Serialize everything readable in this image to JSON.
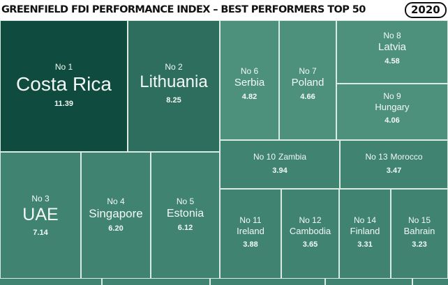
{
  "header": {
    "title": "GREENFIELD FDI PERFORMANCE INDEX – BEST PERFORMERS TOP 50",
    "year": "2020"
  },
  "colors": {
    "darkest": "#0f4b3e",
    "dark": "#2d6e5e",
    "medium": "#3f8370",
    "light": "#4d917d",
    "border": "#d9ebe3"
  },
  "chart_data": {
    "type": "treemap",
    "title": "GREENFIELD FDI PERFORMANCE INDEX – BEST PERFORMERS TOP 50",
    "year": "2020",
    "items": [
      {
        "rank_label": "No 1",
        "country": "Costa Rica",
        "value_label": "11.39",
        "value": 11.39
      },
      {
        "rank_label": "No 2",
        "country": "Lithuania",
        "value_label": "8.25",
        "value": 8.25
      },
      {
        "rank_label": "No 3",
        "country": "UAE",
        "value_label": "7.14",
        "value": 7.14
      },
      {
        "rank_label": "No 4",
        "country": "Singapore",
        "value_label": "6.20",
        "value": 6.2
      },
      {
        "rank_label": "No 5",
        "country": "Estonia",
        "value_label": "6.12",
        "value": 6.12
      },
      {
        "rank_label": "No 6",
        "country": "Serbia",
        "value_label": "4.82",
        "value": 4.82
      },
      {
        "rank_label": "No 7",
        "country": "Poland",
        "value_label": "4.66",
        "value": 4.66
      },
      {
        "rank_label": "No 8",
        "country": "Latvia",
        "value_label": "4.58",
        "value": 4.58
      },
      {
        "rank_label": "No 9",
        "country": "Hungary",
        "value_label": "4.06",
        "value": 4.06
      },
      {
        "rank_label": "No 10",
        "country": "Zambia",
        "value_label": "3.94",
        "value": 3.94
      },
      {
        "rank_label": "No 11",
        "country": "Ireland",
        "value_label": "3.88",
        "value": 3.88
      },
      {
        "rank_label": "No 12",
        "country": "Cambodia",
        "value_label": "3.65",
        "value": 3.65
      },
      {
        "rank_label": "No 13",
        "country": "Morocco",
        "value_label": "3.47",
        "value": 3.47
      },
      {
        "rank_label": "No 14",
        "country": "Finland",
        "value_label": "3.31",
        "value": 3.31
      },
      {
        "rank_label": "No 15",
        "country": "Bahrain",
        "value_label": "3.23",
        "value": 3.23
      }
    ]
  }
}
